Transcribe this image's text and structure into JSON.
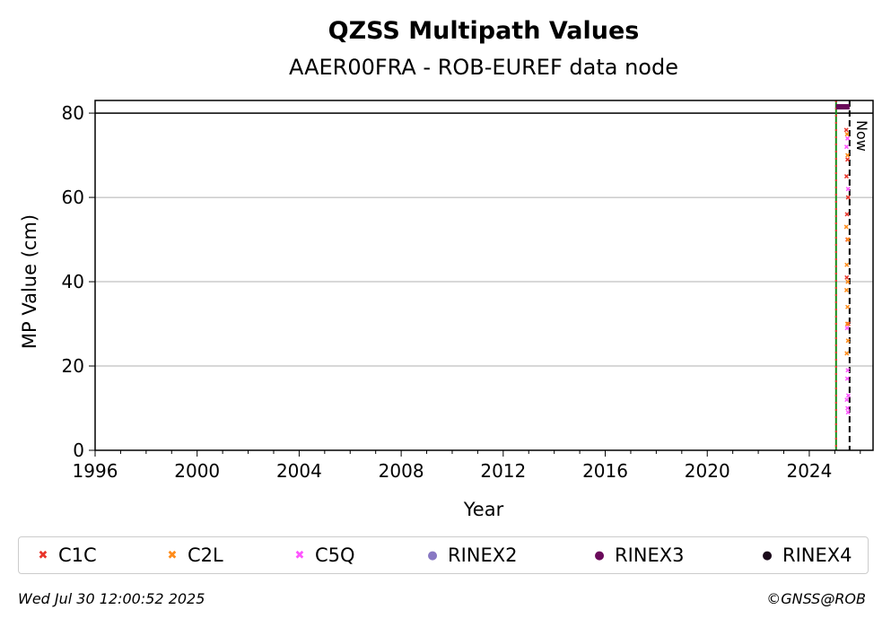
{
  "chart_data": {
    "type": "scatter",
    "title": "QZSS Multipath Values",
    "subtitle": "AAER00FRA - ROB-EUREF data node",
    "xlabel": "Year",
    "ylabel": "MP Value (cm)",
    "xlim": [
      1996,
      2026.5
    ],
    "ylim": [
      0,
      83
    ],
    "x_ticks": [
      "1996",
      "2000",
      "2004",
      "2008",
      "2012",
      "2016",
      "2020",
      "2024"
    ],
    "y_ticks": [
      "0",
      "20",
      "40",
      "60",
      "80"
    ],
    "grid": "y",
    "reference_line_y": 80,
    "now_label": "Now",
    "now_x": 2025.58,
    "start_x": 2025.05,
    "series": [
      {
        "name": "C1C",
        "color": "#e8352b",
        "marker": "x",
        "x": [
          2025.45,
          2025.5,
          2025.46,
          2025.52,
          2025.48,
          2025.5,
          2025.47,
          2025.53
        ],
        "y": [
          76,
          69,
          65,
          60,
          56,
          50,
          41,
          30
        ]
      },
      {
        "name": "C2L",
        "color": "#ff8c1a",
        "marker": "x",
        "x": [
          2025.48,
          2025.5,
          2025.45,
          2025.52,
          2025.47,
          2025.51,
          2025.46,
          2025.5,
          2025.49,
          2025.52,
          2025.47
        ],
        "y": [
          75,
          70,
          53,
          50,
          44,
          40,
          38,
          34,
          30,
          26,
          23
        ]
      },
      {
        "name": "C5Q",
        "color": "#ff55ff",
        "marker": "x",
        "x": [
          2025.5,
          2025.46,
          2025.52,
          2025.48,
          2025.51,
          2025.49,
          2025.53,
          2025.47,
          2025.5,
          2025.52
        ],
        "y": [
          74,
          72,
          62,
          29,
          19,
          17,
          13,
          12,
          10,
          9
        ]
      },
      {
        "name": "RINEX2",
        "color": "#8878c3",
        "marker": "o",
        "x": [],
        "y": []
      },
      {
        "name": "RINEX3",
        "color": "#6a0a5a",
        "marker": "o",
        "x_start": 2025.05,
        "x_end": 2025.58,
        "y": 81.5
      },
      {
        "name": "RINEX4",
        "color": "#1a0a1a",
        "marker": "o",
        "x": [],
        "y": []
      }
    ],
    "legend_position": "bottom"
  },
  "footer": {
    "timestamp": "Wed Jul 30 12:00:52 2025",
    "credit": "©GNSS@ROB"
  }
}
